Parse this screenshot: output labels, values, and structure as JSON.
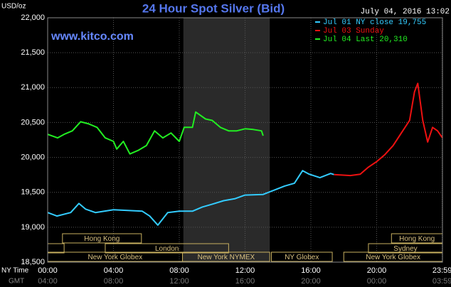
{
  "chart_data": {
    "type": "line",
    "title": "24 Hour Spot Silver (Bid)",
    "timestamp": "July 04, 2016 13:02",
    "watermark": "www.kitco.com",
    "y_axis_label": "USD/oz",
    "x_axis_label": "NY Time",
    "x2_axis_label": "GMT",
    "ylim": [
      18.5,
      22
    ],
    "yticks": [
      {
        "value": 18.5,
        "label": "18,500"
      },
      {
        "value": 19,
        "label": "19,000"
      },
      {
        "value": 19.5,
        "label": "19,500"
      },
      {
        "value": 20,
        "label": "20,000"
      },
      {
        "value": 20.5,
        "label": "20,500"
      },
      {
        "value": 21,
        "label": "21,000"
      },
      {
        "value": 21.5,
        "label": "21,500"
      },
      {
        "value": 22,
        "label": "22,000"
      }
    ],
    "xlim": [
      0,
      24
    ],
    "xticks": [
      {
        "value": 0,
        "label": "00:00"
      },
      {
        "value": 4,
        "label": "04:00"
      },
      {
        "value": 8,
        "label": "08:00"
      },
      {
        "value": 12,
        "label": "12:00"
      },
      {
        "value": 16,
        "label": "16:00"
      },
      {
        "value": 20,
        "label": "20:00"
      },
      {
        "value": 23.983,
        "label": "23:59"
      }
    ],
    "x2_tick_labels": [
      "04:00",
      "08:00",
      "12:00",
      "16:00",
      "20:00",
      "00:00",
      "03:59"
    ],
    "grid": true,
    "shaded_x": [
      8.25,
      13.5
    ],
    "series": [
      {
        "name": "Jul 01 NY close 19,755",
        "color": "#33ccff",
        "x": [
          0,
          0.56,
          1.4,
          1.9,
          2.3,
          2.9,
          4,
          5.75,
          6.2,
          6.7,
          7.3,
          8,
          8.8,
          9.4,
          10,
          10.7,
          11.4,
          12,
          13.1,
          13.75,
          14.4,
          15,
          15.5,
          15.9,
          16.55,
          17.2,
          17.4
        ],
        "values": [
          19.21,
          19.16,
          19.21,
          19.34,
          19.26,
          19.21,
          19.25,
          19.23,
          19.16,
          19.03,
          19.21,
          19.23,
          19.23,
          19.29,
          19.33,
          19.38,
          19.41,
          19.46,
          19.47,
          19.53,
          19.59,
          19.63,
          19.81,
          19.76,
          19.71,
          19.77,
          19.755
        ]
      },
      {
        "name": "Jul 03 Sunday",
        "color": "#ee1111",
        "x": [
          17.4,
          18.4,
          19,
          19.5,
          20,
          20.5,
          21,
          21.5,
          22,
          22.3,
          22.5,
          22.8,
          23.1,
          23.4,
          23.7,
          24
        ],
        "values": [
          19.755,
          19.74,
          19.76,
          19.86,
          19.94,
          20.04,
          20.17,
          20.35,
          20.53,
          20.94,
          21.06,
          20.53,
          20.22,
          20.43,
          20.38,
          20.28
        ]
      },
      {
        "name": "Jul 04 Last 20,310",
        "color": "#22ee22",
        "x": [
          0,
          0.6,
          1,
          1.5,
          2,
          2.5,
          3,
          3.5,
          4,
          4.2,
          4.6,
          5,
          5.5,
          6,
          6.5,
          7,
          7.5,
          8,
          8.3,
          8.8,
          9,
          9.6,
          10,
          10.5,
          11,
          11.5,
          12,
          12.5,
          13,
          13.1
        ],
        "values": [
          20.33,
          20.28,
          20.33,
          20.38,
          20.51,
          20.48,
          20.43,
          20.28,
          20.23,
          20.12,
          20.23,
          20.05,
          20.1,
          20.17,
          20.38,
          20.28,
          20.35,
          20.23,
          20.43,
          20.43,
          20.65,
          20.55,
          20.53,
          20.43,
          20.38,
          20.38,
          20.41,
          20.4,
          20.38,
          20.31
        ]
      }
    ],
    "sessions": [
      {
        "label": "Hong Kong",
        "start": 0.9,
        "end": 5.7,
        "row": 0
      },
      {
        "label": null,
        "start": 0,
        "end": 1,
        "row": 1
      },
      {
        "label": "London",
        "start": 3.5,
        "end": 11,
        "row": 1
      },
      {
        "label": "New York Globex",
        "start": 0,
        "end": 8.2,
        "row": 2
      },
      {
        "label": "New York NYMEX",
        "start": 8.2,
        "end": 13.5,
        "row": 2
      },
      {
        "label": "NY Globex",
        "start": 13.6,
        "end": 17.3,
        "row": 2
      },
      {
        "label": "Hong Kong",
        "start": 20.9,
        "end": 24,
        "row": 0
      },
      {
        "label": "Sydney",
        "start": 19.5,
        "end": 24,
        "row": 1
      },
      {
        "label": "New York Globex",
        "start": 18,
        "end": 24,
        "row": 2
      }
    ]
  }
}
